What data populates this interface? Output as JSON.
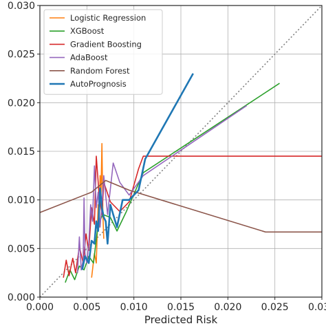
{
  "chart_data": {
    "type": "line",
    "xlabel": "Predicted Risk",
    "ylabel": "",
    "xlim": [
      0.0,
      0.03
    ],
    "ylim": [
      0.0,
      0.03
    ],
    "xticks": [
      "0.000",
      "0.005",
      "0.010",
      "0.015",
      "0.020",
      "0.025",
      "0.030"
    ],
    "yticks": [
      "0.000",
      "0.005",
      "0.010",
      "0.015",
      "0.020",
      "0.025",
      "0.030"
    ],
    "grid": true,
    "legend_position": "top-left",
    "reference_line": {
      "style": "dotted",
      "color": "#7f7f7f",
      "points": [
        [
          0.0,
          0.0
        ],
        [
          0.03,
          0.03
        ]
      ]
    },
    "series": [
      {
        "name": "Logistic Regression",
        "color": "#ff7f0e",
        "points": [
          [
            0.0055,
            0.002
          ],
          [
            0.0058,
            0.0045
          ],
          [
            0.006,
            0.0035
          ],
          [
            0.0062,
            0.0095
          ],
          [
            0.0063,
            0.0072
          ],
          [
            0.0064,
            0.0125
          ],
          [
            0.0065,
            0.0105
          ],
          [
            0.0066,
            0.0158
          ],
          [
            0.0067,
            0.0085
          ],
          [
            0.0068,
            0.006
          ]
        ]
      },
      {
        "name": "XGBoost",
        "color": "#2ca02c",
        "points": [
          [
            0.0027,
            0.0015
          ],
          [
            0.0032,
            0.0028
          ],
          [
            0.0037,
            0.0018
          ],
          [
            0.0042,
            0.0032
          ],
          [
            0.0047,
            0.0028
          ],
          [
            0.0052,
            0.0042
          ],
          [
            0.0057,
            0.0035
          ],
          [
            0.0062,
            0.0075
          ],
          [
            0.0067,
            0.0085
          ],
          [
            0.0075,
            0.0082
          ],
          [
            0.0082,
            0.0068
          ],
          [
            0.0092,
            0.0088
          ],
          [
            0.011,
            0.0128
          ],
          [
            0.0255,
            0.022
          ]
        ]
      },
      {
        "name": "Gradient Boosting",
        "color": "#d62728",
        "points": [
          [
            0.0025,
            0.002
          ],
          [
            0.0028,
            0.0038
          ],
          [
            0.0031,
            0.0022
          ],
          [
            0.0035,
            0.004
          ],
          [
            0.0038,
            0.0025
          ],
          [
            0.0042,
            0.0052
          ],
          [
            0.0046,
            0.0035
          ],
          [
            0.0049,
            0.0065
          ],
          [
            0.0052,
            0.0048
          ],
          [
            0.0055,
            0.0092
          ],
          [
            0.0058,
            0.0075
          ],
          [
            0.006,
            0.0145
          ],
          [
            0.0063,
            0.0105
          ],
          [
            0.0066,
            0.0085
          ],
          [
            0.0068,
            0.0118
          ],
          [
            0.0075,
            0.0098
          ],
          [
            0.0085,
            0.0088
          ],
          [
            0.0095,
            0.0098
          ],
          [
            0.0105,
            0.0132
          ],
          [
            0.011,
            0.0145
          ],
          [
            0.03,
            0.0145
          ]
        ]
      },
      {
        "name": "AdaBoost",
        "color": "#9467bd",
        "points": [
          [
            0.004,
            0.0025
          ],
          [
            0.0042,
            0.0062
          ],
          [
            0.0044,
            0.0028
          ],
          [
            0.0046,
            0.0038
          ],
          [
            0.0047,
            0.0102
          ],
          [
            0.0048,
            0.0045
          ],
          [
            0.005,
            0.0035
          ],
          [
            0.0052,
            0.0055
          ],
          [
            0.0054,
            0.0095
          ],
          [
            0.0056,
            0.0078
          ],
          [
            0.0058,
            0.0135
          ],
          [
            0.006,
            0.0092
          ],
          [
            0.0062,
            0.0108
          ],
          [
            0.0064,
            0.0072
          ],
          [
            0.0066,
            0.0095
          ],
          [
            0.0068,
            0.0125
          ],
          [
            0.0072,
            0.0085
          ],
          [
            0.0078,
            0.0138
          ],
          [
            0.0085,
            0.0118
          ],
          [
            0.0095,
            0.0105
          ],
          [
            0.011,
            0.0125
          ],
          [
            0.022,
            0.0197
          ]
        ]
      },
      {
        "name": "Random Forest",
        "color": "#8c564b",
        "points": [
          [
            0.0,
            0.0087
          ],
          [
            0.0055,
            0.0108
          ],
          [
            0.007,
            0.012
          ],
          [
            0.0095,
            0.011
          ],
          [
            0.024,
            0.0067
          ],
          [
            0.03,
            0.0067
          ]
        ]
      },
      {
        "name": "AutoPrognosis",
        "color": "#1f77b4",
        "points": [
          [
            0.0045,
            0.0028
          ],
          [
            0.0048,
            0.0042
          ],
          [
            0.0052,
            0.0035
          ],
          [
            0.0055,
            0.0058
          ],
          [
            0.0058,
            0.0055
          ],
          [
            0.006,
            0.0078
          ],
          [
            0.0062,
            0.0068
          ],
          [
            0.0064,
            0.0112
          ],
          [
            0.0066,
            0.0092
          ],
          [
            0.0068,
            0.0082
          ],
          [
            0.007,
            0.0078
          ],
          [
            0.0072,
            0.0055
          ],
          [
            0.0075,
            0.0095
          ],
          [
            0.0078,
            0.0085
          ],
          [
            0.0082,
            0.0072
          ],
          [
            0.0088,
            0.01
          ],
          [
            0.0095,
            0.01
          ],
          [
            0.0105,
            0.011
          ],
          [
            0.0112,
            0.0142
          ],
          [
            0.0163,
            0.023
          ]
        ]
      }
    ]
  }
}
